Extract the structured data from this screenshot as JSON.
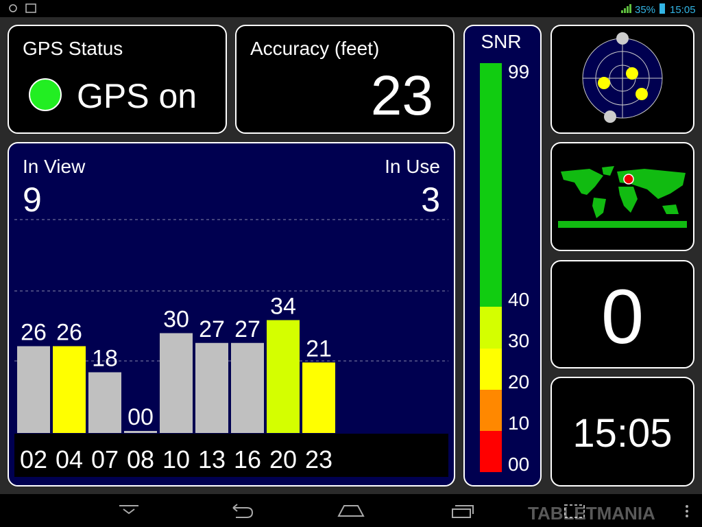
{
  "status_bar": {
    "battery": "35%",
    "time": "15:05"
  },
  "gps_status": {
    "title": "GPS Status",
    "value": "GPS on"
  },
  "accuracy": {
    "title": "Accuracy (feet)",
    "value": "23"
  },
  "satellites": {
    "in_view_label": "In View",
    "in_view": "9",
    "in_use_label": "In Use",
    "in_use": "3",
    "bars": [
      {
        "prn": "02",
        "snr": "26",
        "color": "#c0c0c0"
      },
      {
        "prn": "04",
        "snr": "26",
        "color": "#ffff00"
      },
      {
        "prn": "07",
        "snr": "18",
        "color": "#c0c0c0"
      },
      {
        "prn": "08",
        "snr": "00",
        "color": "#c0c0c0"
      },
      {
        "prn": "10",
        "snr": "30",
        "color": "#c0c0c0"
      },
      {
        "prn": "13",
        "snr": "27",
        "color": "#c0c0c0"
      },
      {
        "prn": "16",
        "snr": "27",
        "color": "#c0c0c0"
      },
      {
        "prn": "20",
        "snr": "34",
        "color": "#d4ff00"
      },
      {
        "prn": "23",
        "snr": "21",
        "color": "#ffff00"
      }
    ]
  },
  "snr_scale": {
    "title": "SNR",
    "labels": [
      "99",
      "40",
      "30",
      "20",
      "10",
      "00"
    ]
  },
  "counter": "0",
  "clock": "15:05",
  "watermark": "TABLETMANIA"
}
